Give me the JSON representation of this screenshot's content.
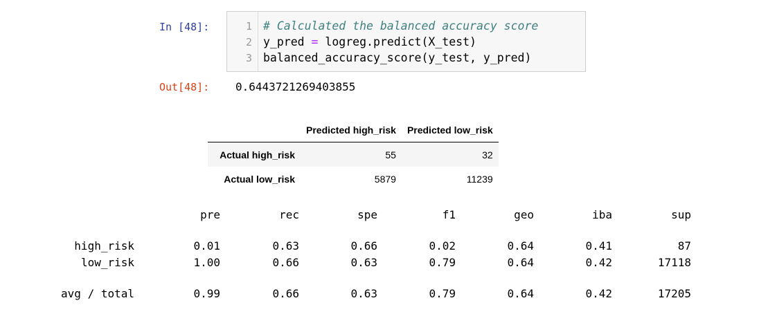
{
  "cell": {
    "in_prompt": "In [48]:",
    "out_prompt": "Out[48]:",
    "line_numbers": [
      "1",
      "2",
      "3"
    ],
    "code": {
      "comment": "# Calculated the balanced accuracy score",
      "l2a": "y_pred ",
      "l2op": "=",
      "l2b": " logreg.predict(X_test)",
      "l3": "balanced_accuracy_score(y_test, y_pred)"
    },
    "output": "0.6443721269403855"
  },
  "confusion": {
    "columns": [
      "",
      "Predicted high_risk",
      "Predicted low_risk"
    ],
    "rows": [
      {
        "label": "Actual high_risk",
        "values": [
          "55",
          "32"
        ]
      },
      {
        "label": "Actual low_risk",
        "values": [
          "5879",
          "11239"
        ]
      }
    ]
  },
  "report": {
    "headers": [
      "pre",
      "rec",
      "spe",
      "f1",
      "geo",
      "iba",
      "sup"
    ],
    "rows": [
      {
        "label": "high_risk",
        "values": [
          "0.01",
          "0.63",
          "0.66",
          "0.02",
          "0.64",
          "0.41",
          "87"
        ]
      },
      {
        "label": "low_risk",
        "values": [
          "1.00",
          "0.66",
          "0.63",
          "0.79",
          "0.64",
          "0.42",
          "17118"
        ]
      },
      {
        "label": "avg / total",
        "values": [
          "0.99",
          "0.66",
          "0.63",
          "0.79",
          "0.64",
          "0.42",
          "17205"
        ]
      }
    ]
  }
}
